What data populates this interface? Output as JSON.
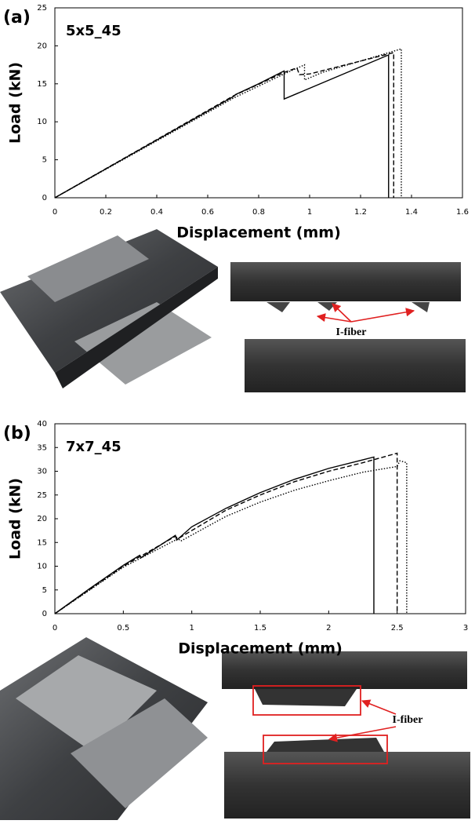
{
  "chart_data": [
    {
      "type": "line",
      "panel": "(a)",
      "title": "5x5_45",
      "xlabel": "Displacement (mm)",
      "ylabel": "Load (kN)",
      "xlim": [
        0,
        1.6
      ],
      "xticks": [
        0,
        0.2,
        0.4,
        0.6,
        0.8,
        1,
        1.2,
        1.4,
        1.6
      ],
      "ylim": [
        0,
        25
      ],
      "yticks": [
        0,
        5,
        10,
        15,
        20,
        25
      ],
      "annotation": "I-fiber",
      "series": [
        {
          "color": "#000000",
          "style": "solid",
          "x": [
            0,
            0.7,
            0.71,
            0.8,
            0.9,
            0.9,
            1.31,
            1.31
          ],
          "values": [
            0,
            13.3,
            13.6,
            15,
            16.7,
            13,
            18.8,
            0
          ]
        },
        {
          "color": "#000000",
          "style": "dashed",
          "x": [
            0,
            0.7,
            0.9,
            0.95,
            0.96,
            1.0,
            1.33,
            1.33
          ],
          "values": [
            0,
            13.4,
            16.5,
            17.1,
            16.2,
            16.3,
            19.1,
            0
          ]
        },
        {
          "color": "#000000",
          "style": "dotted",
          "x": [
            0,
            0.7,
            0.9,
            0.98,
            0.98,
            1.05,
            1.36,
            1.36
          ],
          "values": [
            0,
            13.1,
            16.3,
            17.5,
            15.5,
            16.5,
            19.6,
            0
          ]
        }
      ]
    },
    {
      "type": "line",
      "panel": "(b)",
      "title": "7x7_45",
      "xlabel": "Displacement (mm)",
      "ylabel": "Load (kN)",
      "xlim": [
        0,
        3
      ],
      "xticks": [
        0,
        0.5,
        1,
        1.5,
        2,
        2.5,
        3
      ],
      "ylim": [
        0,
        40
      ],
      "yticks": [
        0,
        5,
        10,
        15,
        20,
        25,
        30,
        35,
        40
      ],
      "annotation": "I-fiber",
      "series": [
        {
          "color": "#000000",
          "style": "solid",
          "x": [
            0,
            0.25,
            0.5,
            0.62,
            0.63,
            0.88,
            0.89,
            1.0,
            1.25,
            1.5,
            1.75,
            2.0,
            2.25,
            2.33,
            2.33
          ],
          "values": [
            0,
            5.2,
            10.2,
            12.3,
            11.8,
            16.5,
            15.5,
            18.3,
            22.2,
            25.5,
            28.3,
            30.6,
            32.4,
            33,
            0
          ]
        },
        {
          "color": "#000000",
          "style": "dashed",
          "x": [
            0,
            0.5,
            0.88,
            0.9,
            1.25,
            1.5,
            1.75,
            2.0,
            2.25,
            2.5,
            2.5
          ],
          "values": [
            0,
            10,
            16.3,
            15.8,
            21.8,
            25,
            27.8,
            30,
            31.8,
            33.8,
            0
          ]
        },
        {
          "color": "#000000",
          "style": "dotted",
          "x": [
            0,
            0.5,
            0.9,
            0.92,
            1.25,
            1.5,
            1.75,
            2.0,
            2.25,
            2.5,
            2.52,
            2.57,
            2.57
          ],
          "values": [
            0,
            9.8,
            15.8,
            15.3,
            20.5,
            23.5,
            26,
            28,
            29.8,
            31,
            32.2,
            31.8,
            0
          ]
        }
      ]
    }
  ]
}
